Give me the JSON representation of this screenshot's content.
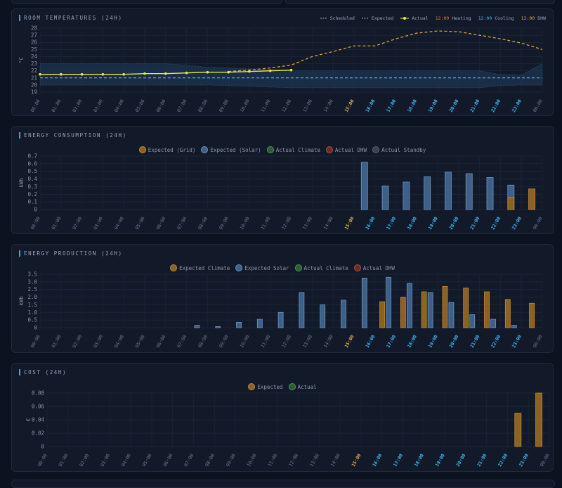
{
  "colors": {
    "scheduled": "#7fb3e6",
    "expected": "#d9a441",
    "actual": "#e8e84a",
    "heating": "#e07a3a",
    "cooling": "#3fb8f0",
    "dhw": "#e3a84a",
    "grid": "#b07a2a",
    "solar": "#5f86b8",
    "climate": "#4b8a55",
    "actualDhw": "#a84a3a",
    "standby": "#5a6070",
    "tickNormal": "#6e7a8e",
    "tickHighlight": "#e3a84a",
    "tickFuture": "#3fb8f0"
  },
  "hours": [
    "00:00",
    "01:00",
    "02:00",
    "03:00",
    "04:00",
    "05:00",
    "06:00",
    "07:00",
    "08:00",
    "09:00",
    "10:00",
    "11:00",
    "12:00",
    "13:00",
    "14:00",
    "15:00",
    "16:00",
    "17:00",
    "18:00",
    "19:00",
    "20:00",
    "21:00",
    "22:00",
    "23:00",
    "00:00"
  ],
  "hour_styles": [
    "n",
    "n",
    "n",
    "n",
    "n",
    "n",
    "n",
    "n",
    "n",
    "n",
    "n",
    "n",
    "n",
    "n",
    "n",
    "h",
    "f",
    "f",
    "f",
    "f",
    "f",
    "f",
    "f",
    "f",
    "n"
  ],
  "temperature": {
    "title": "ROOM TEMPERATURES (24H)",
    "legend": {
      "scheduled": "Scheduled",
      "expected": "Expected",
      "actual": "Actual",
      "heating_time": "12:00",
      "heating": "Heating",
      "cooling_time": "12:00",
      "cooling": "Cooling",
      "dhw_time": "12:00",
      "dhw": "DHW"
    },
    "ylabel": "°C",
    "ylim": [
      19,
      28
    ],
    "yticks": [
      19,
      20,
      21,
      22,
      23,
      24,
      25,
      26,
      27,
      28
    ],
    "chart_data": {
      "type": "line",
      "scheduled": 21.0,
      "band_upper": [
        23,
        23,
        23,
        23,
        23,
        23,
        23,
        22.8,
        22.5,
        22.4,
        22.3,
        22.2,
        22,
        22,
        22,
        22,
        22,
        22,
        22,
        22,
        22,
        22,
        21.5,
        21.4,
        23
      ],
      "band_lower": [
        20,
        20,
        20,
        20,
        20,
        20,
        20,
        20,
        20,
        19.9,
        19.8,
        19.7,
        19.6,
        19.6,
        19.6,
        19.6,
        19.6,
        19.6,
        19.6,
        19.6,
        19.6,
        19.6,
        19.9,
        20,
        20
      ],
      "expected_x": [
        9,
        10,
        11,
        12,
        13,
        14,
        15,
        16,
        17,
        18,
        19,
        20,
        21,
        22,
        23,
        24
      ],
      "expected_y": [
        21.9,
        22.1,
        22.4,
        22.8,
        24.0,
        24.7,
        25.5,
        25.5,
        26.5,
        27.3,
        27.6,
        27.5,
        27.0,
        26.5,
        25.9,
        25.0
      ],
      "actual_x": [
        0,
        1,
        2,
        3,
        4,
        5,
        6,
        7,
        8,
        9,
        10,
        11,
        12
      ],
      "actual_y": [
        21.5,
        21.5,
        21.5,
        21.5,
        21.5,
        21.6,
        21.6,
        21.7,
        21.8,
        21.8,
        21.9,
        22.0,
        22.1
      ]
    }
  },
  "consumption": {
    "title": "ENERGY CONSUMPTION (24H)",
    "legend": [
      "Expected (Grid)",
      "Expected (Solar)",
      "Actual Climate",
      "Actual DHW",
      "Actual Standby"
    ],
    "ylabel": "kWh",
    "ylim": [
      0,
      0.7
    ],
    "yticks": [
      "0",
      "0.1",
      "0.2",
      "0.3",
      "0.4",
      "0.5",
      "0.6",
      "0.7"
    ],
    "chart_data": {
      "type": "bar",
      "solar": [
        0,
        0,
        0,
        0,
        0,
        0,
        0,
        0,
        0,
        0,
        0,
        0,
        0,
        0,
        0,
        0.62,
        0.31,
        0.36,
        0.43,
        0.49,
        0.47,
        0.42,
        0.32,
        0
      ],
      "grid": [
        0,
        0,
        0,
        0,
        0,
        0,
        0,
        0,
        0,
        0,
        0,
        0,
        0,
        0,
        0,
        0,
        0,
        0,
        0,
        0,
        0,
        0,
        0.16,
        0.27
      ]
    }
  },
  "production": {
    "title": "ENERGY PRODUCTION (24H)",
    "legend": [
      "Expected Climate",
      "Expected Solar",
      "Actual Climate",
      "Actual DHW"
    ],
    "ylabel": "kWh",
    "ylim": [
      0,
      3.5
    ],
    "yticks": [
      "0",
      "0.5",
      "1.0",
      "1.5",
      "2.0",
      "2.5",
      "3.0",
      "3.5"
    ],
    "chart_data": {
      "type": "bar",
      "climate": [
        0,
        0,
        0,
        0,
        0,
        0,
        0,
        0,
        0,
        0,
        0,
        0,
        0,
        0,
        0,
        0,
        1.7,
        2.0,
        2.35,
        2.7,
        2.6,
        2.35,
        1.85,
        1.6
      ],
      "solar": [
        0,
        0,
        0,
        0,
        0,
        0,
        0,
        0.15,
        0.07,
        0.35,
        0.55,
        1.0,
        2.3,
        1.5,
        1.8,
        3.25,
        3.3,
        2.9,
        2.3,
        1.65,
        0.85,
        0.55,
        0.15,
        0
      ]
    }
  },
  "cost": {
    "title": "COST (24H)",
    "legend": [
      "Expected",
      "Actual"
    ],
    "ylabel": "€",
    "ylim": [
      0,
      0.08
    ],
    "yticks": [
      "0",
      "0.02",
      "0.04",
      "0.06",
      "0.08"
    ],
    "chart_data": {
      "type": "bar",
      "expected": [
        0,
        0,
        0,
        0,
        0,
        0,
        0,
        0,
        0,
        0,
        0,
        0,
        0,
        0,
        0,
        0,
        0,
        0,
        0,
        0,
        0,
        0,
        0.05,
        0.08
      ]
    }
  }
}
